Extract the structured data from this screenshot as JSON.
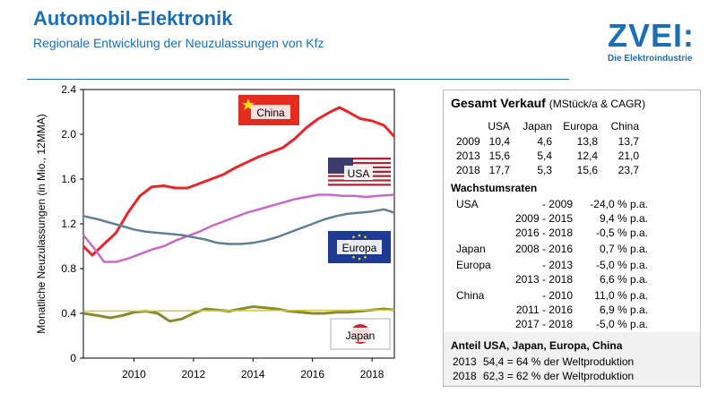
{
  "header": {
    "title": "Automobil-Elektronik",
    "subtitle": "Regionale Entwicklung der Neuzulassungen von Kfz"
  },
  "logo": {
    "main": "ZVEI:",
    "sub": "Die Elektroindustrie"
  },
  "colors": {
    "brand": "#1a6fb5",
    "china": "#e8262a",
    "usa": "#c869c8",
    "europa": "#5f7f96",
    "japan": "#8a8b2a",
    "japan_smooth": "#c8c84a"
  },
  "chart_data": {
    "type": "line",
    "ylabel": "Monatliche Neuzulassungen (in Mio., 12MMA)",
    "xlabel": "",
    "ylim": [
      0,
      2.4
    ],
    "xlim": [
      2008.3,
      2018.75
    ],
    "yticks": [
      "0",
      "0.4",
      "0.8",
      "1.2",
      "1.6",
      "2.0",
      "2.4"
    ],
    "xticks": [
      "2010",
      "2012",
      "2014",
      "2016",
      "2018"
    ],
    "series": [
      {
        "name": "China",
        "label": "China",
        "x": [
          2008.3,
          2008.6,
          2009.0,
          2009.4,
          2009.8,
          2010.2,
          2010.6,
          2011.0,
          2011.4,
          2011.8,
          2012.2,
          2012.6,
          2013.0,
          2013.4,
          2013.8,
          2014.2,
          2014.6,
          2015.0,
          2015.4,
          2015.8,
          2016.2,
          2016.6,
          2016.9,
          2017.2,
          2017.6,
          2018.0,
          2018.4,
          2018.75
        ],
        "values": [
          1.0,
          0.92,
          1.02,
          1.12,
          1.3,
          1.45,
          1.53,
          1.54,
          1.52,
          1.52,
          1.56,
          1.6,
          1.64,
          1.7,
          1.75,
          1.8,
          1.84,
          1.88,
          1.96,
          2.06,
          2.14,
          2.2,
          2.24,
          2.2,
          2.14,
          2.12,
          2.08,
          1.98
        ]
      },
      {
        "name": "USA",
        "label": "USA",
        "x": [
          2008.3,
          2008.7,
          2009.0,
          2009.4,
          2009.8,
          2010.2,
          2010.6,
          2011.0,
          2011.4,
          2011.8,
          2012.2,
          2012.6,
          2013.0,
          2013.4,
          2013.8,
          2014.2,
          2014.6,
          2015.0,
          2015.4,
          2015.8,
          2016.2,
          2016.6,
          2017.0,
          2017.4,
          2017.8,
          2018.2,
          2018.75
        ],
        "values": [
          1.1,
          0.97,
          0.86,
          0.86,
          0.89,
          0.93,
          0.97,
          1.0,
          1.05,
          1.09,
          1.13,
          1.18,
          1.22,
          1.26,
          1.3,
          1.33,
          1.36,
          1.39,
          1.42,
          1.44,
          1.46,
          1.46,
          1.45,
          1.45,
          1.44,
          1.45,
          1.46
        ]
      },
      {
        "name": "Europa",
        "label": "Europa",
        "x": [
          2008.3,
          2008.8,
          2009.2,
          2009.6,
          2010.0,
          2010.4,
          2010.8,
          2011.2,
          2011.6,
          2012.0,
          2012.4,
          2012.8,
          2013.2,
          2013.6,
          2014.0,
          2014.4,
          2014.8,
          2015.2,
          2015.6,
          2016.0,
          2016.4,
          2016.8,
          2017.2,
          2017.6,
          2018.0,
          2018.4,
          2018.75
        ],
        "values": [
          1.27,
          1.24,
          1.21,
          1.18,
          1.15,
          1.13,
          1.12,
          1.11,
          1.1,
          1.08,
          1.06,
          1.03,
          1.02,
          1.02,
          1.03,
          1.05,
          1.08,
          1.12,
          1.16,
          1.2,
          1.24,
          1.27,
          1.29,
          1.3,
          1.31,
          1.33,
          1.3
        ]
      },
      {
        "name": "Japan",
        "label": "Japan",
        "x": [
          2008.3,
          2008.8,
          2009.2,
          2009.6,
          2010.0,
          2010.4,
          2010.8,
          2011.2,
          2011.6,
          2012.0,
          2012.4,
          2012.8,
          2013.2,
          2013.6,
          2014.0,
          2014.4,
          2014.8,
          2015.2,
          2015.6,
          2016.0,
          2016.4,
          2016.8,
          2017.2,
          2017.6,
          2018.0,
          2018.4,
          2018.75
        ],
        "values": [
          0.4,
          0.38,
          0.36,
          0.38,
          0.41,
          0.42,
          0.4,
          0.33,
          0.35,
          0.4,
          0.44,
          0.43,
          0.42,
          0.44,
          0.46,
          0.45,
          0.44,
          0.42,
          0.41,
          0.4,
          0.4,
          0.41,
          0.41,
          0.42,
          0.43,
          0.44,
          0.43
        ]
      },
      {
        "name": "Japan Trend",
        "label": "",
        "x": [
          2008.3,
          2018.75
        ],
        "values": [
          0.42,
          0.43
        ]
      }
    ]
  },
  "panel": {
    "title": "Gesamt Verkauf",
    "title_unit": "(MStück/a & CAGR)",
    "columns": [
      "USA",
      "Japan",
      "Europa",
      "China"
    ],
    "sales": [
      {
        "year": "2009",
        "values": [
          "10,4",
          "4,6",
          "13,8",
          "13,7"
        ]
      },
      {
        "year": "2013",
        "values": [
          "15,6",
          "5,4",
          "12,4",
          "21,0"
        ]
      },
      {
        "year": "2018",
        "values": [
          "17,7",
          "5,3",
          "15,6",
          "23,7"
        ]
      }
    ],
    "growth_title": "Wachstumsraten",
    "growth": [
      {
        "region": "USA",
        "period": "- 2009",
        "rate": "-24,0 % p.a."
      },
      {
        "region": "",
        "period": "2009 - 2015",
        "rate": "9,4 % p.a."
      },
      {
        "region": "",
        "period": "2016 - 2018",
        "rate": "-0,5 % p.a."
      },
      {
        "region": "Japan",
        "period": "2008 - 2016",
        "rate": "0,7 % p.a."
      },
      {
        "region": "Europa",
        "period": "- 2013",
        "rate": "-5,0 % p.a."
      },
      {
        "region": "",
        "period": "2013 - 2018",
        "rate": "6,6 % p.a."
      },
      {
        "region": "China",
        "period": "- 2010",
        "rate": "11,0 % p.a."
      },
      {
        "region": "",
        "period": "2011 - 2016",
        "rate": "6,9 % p.a."
      },
      {
        "region": "",
        "period": "2017 - 2018",
        "rate": "-5,0 % p.a."
      }
    ],
    "share_title": "Anteil USA, Japan, Europa, China",
    "shares": [
      {
        "year": "2013",
        "text": "54,4 = 64 % der Weltproduktion"
      },
      {
        "year": "2018",
        "text": "62,3 = 62 % der Weltproduktion"
      }
    ]
  }
}
